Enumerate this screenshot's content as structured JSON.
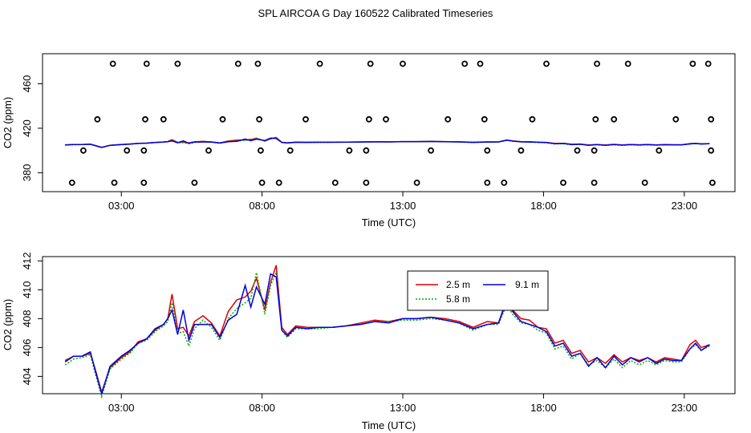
{
  "title": "SPL AIRCOA G  Day 160522  Calibrated Timeseries",
  "colors": {
    "h25": "#dd0000",
    "h58": "#00aa00",
    "h91": "#0000dd",
    "axis": "#000000"
  },
  "chart_data": [
    {
      "type": "scatter",
      "xlabel": "Time (UTC)",
      "ylabel": "CO2 (ppm)",
      "xlim": [
        0.2,
        24.8
      ],
      "ylim": [
        363,
        487
      ],
      "xticks": [
        3,
        8,
        13,
        18,
        23
      ],
      "xtick_labels": [
        "03:00",
        "08:00",
        "13:00",
        "18:00",
        "23:00"
      ],
      "yticks": [
        380,
        420,
        460
      ],
      "ytick_labels": [
        "380",
        "420",
        "460"
      ],
      "scatter_points": [
        {
          "x": 1.25,
          "y": 371
        },
        {
          "x": 2.75,
          "y": 371
        },
        {
          "x": 3.8,
          "y": 371
        },
        {
          "x": 5.6,
          "y": 371
        },
        {
          "x": 8.0,
          "y": 371
        },
        {
          "x": 8.6,
          "y": 371
        },
        {
          "x": 10.6,
          "y": 371
        },
        {
          "x": 11.7,
          "y": 371
        },
        {
          "x": 13.5,
          "y": 371
        },
        {
          "x": 16.0,
          "y": 371
        },
        {
          "x": 16.6,
          "y": 371
        },
        {
          "x": 18.7,
          "y": 371
        },
        {
          "x": 19.8,
          "y": 371
        },
        {
          "x": 21.6,
          "y": 371
        },
        {
          "x": 24.0,
          "y": 371
        },
        {
          "x": 1.65,
          "y": 400
        },
        {
          "x": 3.2,
          "y": 400
        },
        {
          "x": 3.8,
          "y": 400
        },
        {
          "x": 6.1,
          "y": 400
        },
        {
          "x": 7.95,
          "y": 400
        },
        {
          "x": 9.0,
          "y": 400
        },
        {
          "x": 11.1,
          "y": 400
        },
        {
          "x": 11.7,
          "y": 400
        },
        {
          "x": 14.0,
          "y": 400
        },
        {
          "x": 16.0,
          "y": 400
        },
        {
          "x": 17.2,
          "y": 400
        },
        {
          "x": 19.2,
          "y": 400
        },
        {
          "x": 19.8,
          "y": 400
        },
        {
          "x": 22.1,
          "y": 400
        },
        {
          "x": 23.95,
          "y": 400
        },
        {
          "x": 2.15,
          "y": 428
        },
        {
          "x": 3.85,
          "y": 428
        },
        {
          "x": 4.5,
          "y": 428
        },
        {
          "x": 6.6,
          "y": 428
        },
        {
          "x": 7.9,
          "y": 428
        },
        {
          "x": 9.55,
          "y": 428
        },
        {
          "x": 11.8,
          "y": 428
        },
        {
          "x": 12.4,
          "y": 428
        },
        {
          "x": 14.6,
          "y": 428
        },
        {
          "x": 15.9,
          "y": 428
        },
        {
          "x": 17.6,
          "y": 428
        },
        {
          "x": 19.85,
          "y": 428
        },
        {
          "x": 20.5,
          "y": 428
        },
        {
          "x": 22.7,
          "y": 428
        },
        {
          "x": 23.95,
          "y": 428
        },
        {
          "x": 2.7,
          "y": 478
        },
        {
          "x": 3.9,
          "y": 478
        },
        {
          "x": 5.0,
          "y": 478
        },
        {
          "x": 7.15,
          "y": 478
        },
        {
          "x": 7.85,
          "y": 478
        },
        {
          "x": 10.05,
          "y": 478
        },
        {
          "x": 11.85,
          "y": 478
        },
        {
          "x": 13.0,
          "y": 478
        },
        {
          "x": 15.2,
          "y": 478
        },
        {
          "x": 15.75,
          "y": 478
        },
        {
          "x": 18.1,
          "y": 478
        },
        {
          "x": 19.9,
          "y": 478
        },
        {
          "x": 21.0,
          "y": 478
        },
        {
          "x": 23.3,
          "y": 478
        },
        {
          "x": 23.85,
          "y": 478
        }
      ],
      "series_note": "same three height series drawn as near-flat lines",
      "series_refs": [
        "2.5 m",
        "5.8 m",
        "9.1 m"
      ]
    },
    {
      "type": "line",
      "xlabel": "Time (UTC)",
      "ylabel": "CO2 (ppm)",
      "xlim": [
        0.2,
        24.8
      ],
      "ylim": [
        402.8,
        412.3
      ],
      "xticks": [
        3,
        8,
        13,
        18,
        23
      ],
      "xtick_labels": [
        "03:00",
        "08:00",
        "13:00",
        "18:00",
        "23:00"
      ],
      "yticks": [
        404,
        406,
        408,
        410,
        412
      ],
      "ytick_labels": [
        "404",
        "406",
        "408",
        "410",
        "412"
      ],
      "legend": {
        "placement": "top-center",
        "entries": [
          "2.5 m",
          "5.8 m",
          "9.1 m"
        ]
      },
      "series": [
        {
          "name": "2.5 m",
          "color_key": "h25",
          "x": [
            1.0,
            1.3,
            1.6,
            1.9,
            2.1,
            2.3,
            2.6,
            3.0,
            3.3,
            3.6,
            3.9,
            4.2,
            4.5,
            4.65,
            4.8,
            5.0,
            5.2,
            5.4,
            5.6,
            5.9,
            6.2,
            6.5,
            6.8,
            7.1,
            7.4,
            7.6,
            7.8,
            8.1,
            8.3,
            8.5,
            8.7,
            8.9,
            9.2,
            9.6,
            10.0,
            10.5,
            11.0,
            11.5,
            12.0,
            12.5,
            13.0,
            13.5,
            14.0,
            14.5,
            15.0,
            15.5,
            16.0,
            16.4,
            16.7,
            16.9,
            17.2,
            17.5,
            17.8,
            18.1,
            18.4,
            18.7,
            19.0,
            19.3,
            19.6,
            19.9,
            20.2,
            20.5,
            20.8,
            21.1,
            21.4,
            21.7,
            22.0,
            22.3,
            22.6,
            22.9,
            23.2,
            23.4,
            23.6,
            23.9
          ],
          "y": [
            405.1,
            405.4,
            405.4,
            405.6,
            404.3,
            402.9,
            404.6,
            405.3,
            405.7,
            406.4,
            406.6,
            407.2,
            407.6,
            408.0,
            409.7,
            407.3,
            407.4,
            406.8,
            407.8,
            408.2,
            407.7,
            406.8,
            408.5,
            409.3,
            409.5,
            409.9,
            410.8,
            408.6,
            410.5,
            411.7,
            407.4,
            406.9,
            407.5,
            407.4,
            407.4,
            407.4,
            407.5,
            407.7,
            407.9,
            407.8,
            408.0,
            408.0,
            408.1,
            408.0,
            407.8,
            407.4,
            407.8,
            407.7,
            409.2,
            408.6,
            408.0,
            407.9,
            407.4,
            407.3,
            406.3,
            406.5,
            405.6,
            405.8,
            405.0,
            405.3,
            404.9,
            405.5,
            405.0,
            405.3,
            405.1,
            405.3,
            405.0,
            405.3,
            405.2,
            405.1,
            406.2,
            406.5,
            406.0,
            406.2
          ]
        },
        {
          "name": "5.8 m",
          "color_key": "h58",
          "x": [
            1.0,
            1.3,
            1.6,
            1.9,
            2.1,
            2.3,
            2.6,
            3.0,
            3.3,
            3.6,
            3.9,
            4.2,
            4.5,
            4.65,
            4.8,
            5.0,
            5.2,
            5.4,
            5.6,
            5.9,
            6.2,
            6.5,
            6.8,
            7.1,
            7.4,
            7.6,
            7.8,
            8.1,
            8.3,
            8.5,
            8.7,
            8.9,
            9.2,
            9.6,
            10.0,
            10.5,
            11.0,
            11.5,
            12.0,
            12.5,
            13.0,
            13.5,
            14.0,
            14.5,
            15.0,
            15.5,
            16.0,
            16.4,
            16.7,
            16.9,
            17.2,
            17.5,
            17.8,
            18.1,
            18.4,
            18.7,
            19.0,
            19.3,
            19.6,
            19.9,
            20.2,
            20.5,
            20.8,
            21.1,
            21.4,
            21.7,
            22.0,
            22.3,
            22.6,
            22.9,
            23.2,
            23.4,
            23.6,
            23.9
          ],
          "y": [
            404.8,
            405.2,
            405.3,
            405.5,
            404.0,
            402.6,
            404.5,
            405.2,
            405.6,
            406.3,
            406.5,
            407.1,
            407.5,
            407.8,
            409.1,
            407.0,
            407.1,
            406.1,
            407.3,
            407.9,
            407.4,
            406.5,
            408.0,
            408.7,
            409.1,
            409.4,
            411.2,
            408.3,
            410.3,
            411.2,
            407.2,
            406.7,
            407.3,
            407.3,
            407.3,
            407.4,
            407.5,
            407.6,
            407.8,
            407.8,
            407.9,
            407.9,
            408.0,
            407.9,
            407.7,
            407.2,
            407.6,
            407.6,
            409.0,
            408.3,
            407.7,
            407.6,
            407.2,
            407.0,
            405.9,
            406.1,
            405.2,
            405.6,
            404.8,
            405.1,
            404.6,
            405.2,
            404.6,
            405.1,
            404.8,
            405.1,
            404.8,
            405.1,
            405.0,
            405.0,
            405.9,
            406.2,
            405.8,
            406.1
          ]
        },
        {
          "name": "9.1 m",
          "color_key": "h91",
          "x": [
            1.0,
            1.3,
            1.6,
            1.9,
            2.1,
            2.3,
            2.6,
            3.0,
            3.3,
            3.6,
            3.9,
            4.2,
            4.5,
            4.65,
            4.8,
            5.0,
            5.2,
            5.4,
            5.6,
            5.9,
            6.2,
            6.5,
            6.8,
            7.1,
            7.4,
            7.6,
            7.8,
            8.1,
            8.3,
            8.5,
            8.7,
            8.9,
            9.2,
            9.6,
            10.0,
            10.5,
            11.0,
            11.5,
            12.0,
            12.5,
            13.0,
            13.5,
            14.0,
            14.5,
            15.0,
            15.5,
            16.0,
            16.4,
            16.7,
            16.9,
            17.2,
            17.5,
            17.8,
            18.1,
            18.4,
            18.7,
            19.0,
            19.3,
            19.6,
            19.9,
            20.2,
            20.5,
            20.8,
            21.1,
            21.4,
            21.7,
            22.0,
            22.3,
            22.6,
            22.9,
            23.2,
            23.4,
            23.6,
            23.9
          ],
          "y": [
            405.0,
            405.4,
            405.4,
            405.7,
            404.2,
            402.8,
            404.7,
            405.4,
            405.8,
            406.3,
            406.6,
            407.3,
            407.6,
            408.0,
            408.6,
            406.9,
            408.6,
            406.5,
            407.6,
            407.6,
            407.6,
            406.7,
            407.9,
            408.3,
            410.3,
            408.8,
            410.2,
            409.0,
            411.1,
            410.9,
            407.2,
            406.8,
            407.4,
            407.3,
            407.4,
            407.4,
            407.5,
            407.6,
            407.8,
            407.7,
            408.0,
            408.0,
            408.1,
            407.9,
            407.7,
            407.3,
            407.6,
            407.7,
            409.4,
            408.5,
            407.8,
            407.6,
            407.4,
            407.1,
            406.1,
            406.3,
            405.4,
            405.6,
            404.7,
            405.3,
            404.6,
            405.4,
            404.8,
            405.3,
            405.0,
            405.3,
            404.9,
            405.2,
            405.1,
            405.1,
            405.9,
            406.3,
            405.8,
            406.2
          ]
        }
      ]
    }
  ]
}
